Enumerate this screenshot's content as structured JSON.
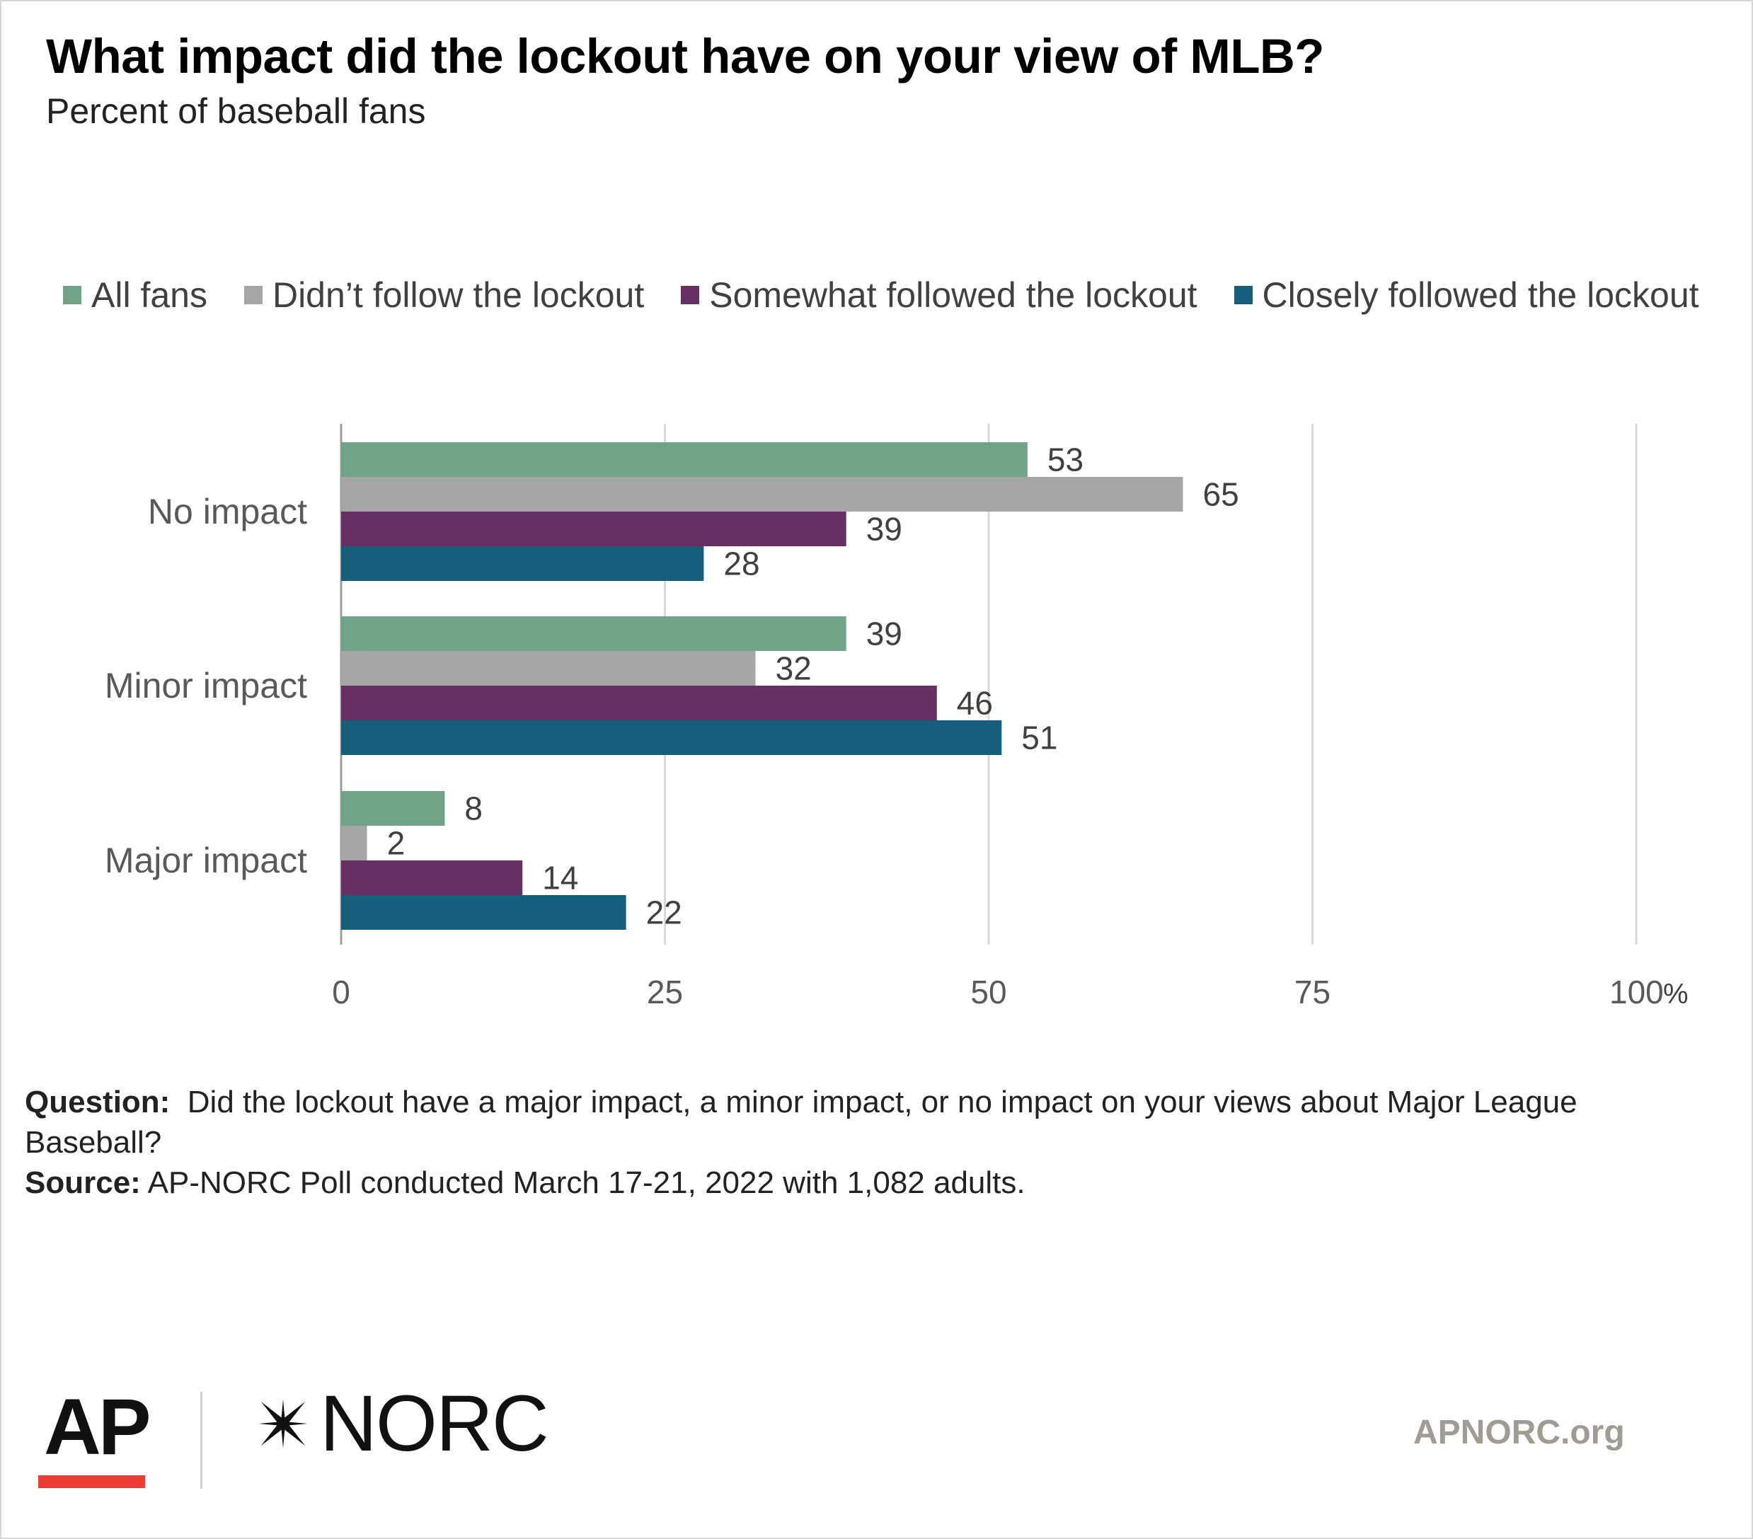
{
  "title": "What impact did the lockout have on your view of MLB?",
  "subtitle": "Percent of baseball fans",
  "legend": [
    {
      "label": "All fans",
      "color": "#6fa487"
    },
    {
      "label": "Didn’t follow the lockout",
      "color": "#a6a6a6"
    },
    {
      "label": "Somewhat followed the lockout",
      "color": "#672f62"
    },
    {
      "label": "Closely followed the lockout",
      "color": "#175e7c"
    }
  ],
  "chart_data": {
    "type": "bar",
    "orientation": "horizontal",
    "categories": [
      "No impact",
      "Minor impact",
      "Major impact"
    ],
    "series": [
      {
        "name": "All fans",
        "color": "#6fa487",
        "values": [
          53,
          39,
          8
        ]
      },
      {
        "name": "Didn’t follow the lockout",
        "color": "#a6a6a6",
        "values": [
          65,
          32,
          2
        ]
      },
      {
        "name": "Somewhat followed the lockout",
        "color": "#672f62",
        "values": [
          39,
          46,
          14
        ]
      },
      {
        "name": "Closely followed the lockout",
        "color": "#175e7c",
        "values": [
          28,
          51,
          22
        ]
      }
    ],
    "xlim": [
      0,
      100
    ],
    "x_ticks": [
      0,
      25,
      50,
      75,
      100
    ],
    "x_tick_labels": [
      "0",
      "25",
      "50",
      "75",
      "100"
    ],
    "x_unit": "%",
    "grid": true,
    "legend_position": "top",
    "data_labels": true
  },
  "footnotes": {
    "question_label": "Question:",
    "question_text": "Did the lockout have a major impact, a minor impact, or no impact on your views about Major League Baseball?",
    "source_label": "Source:",
    "source_text": "AP-NORC Poll conducted March 17-21, 2022 with 1,082 adults."
  },
  "branding": {
    "ap_logo": "AP",
    "norc_logo": "NORC",
    "website": "APNORC.org",
    "ap_accent_color": "#ef3d35"
  }
}
